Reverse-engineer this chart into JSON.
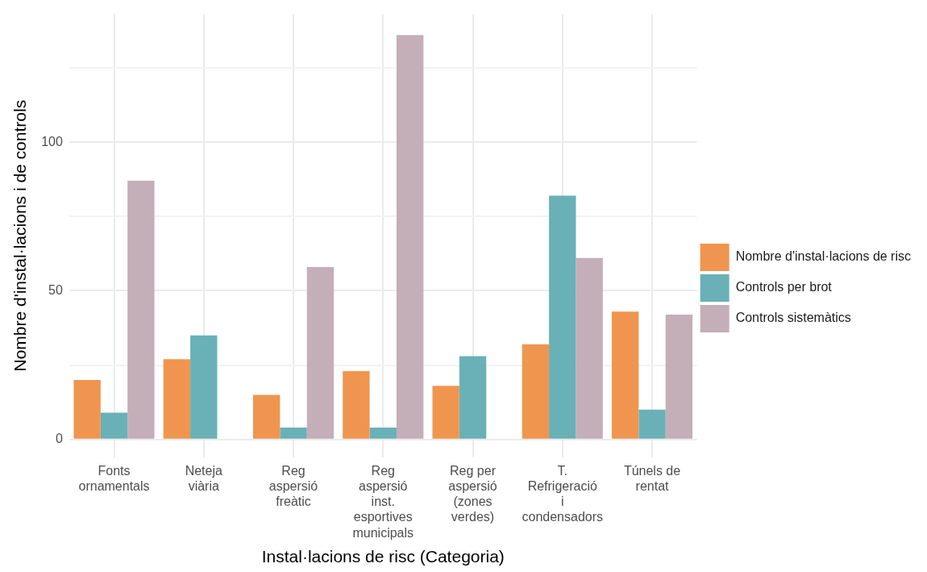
{
  "chart_data": {
    "type": "bar",
    "xlabel": "Instal·lacions de risc (Categoria)",
    "ylabel": "Nombre d'instal·lacions i de controls",
    "categories": [
      "Fonts ornamentals",
      "Neteja viària",
      "Reg aspersió freàtic",
      "Reg aspersió inst. esportives municipals",
      "Reg per aspersió (zones verdes)",
      "T. Refrigeració i condensadors",
      "Túnels de rentat"
    ],
    "series": [
      {
        "name": "Nombre d'instal·lacions de risc",
        "color": "#f0954f",
        "values": [
          20,
          27,
          15,
          23,
          18,
          32,
          43
        ]
      },
      {
        "name": "Controls per brot",
        "color": "#69b1b7",
        "values": [
          9,
          35,
          4,
          4,
          28,
          82,
          10
        ]
      },
      {
        "name": "Controls sistemàtics",
        "color": "#c4aeb7",
        "values": [
          87,
          null,
          58,
          136,
          null,
          61,
          42
        ]
      }
    ],
    "ylim": [
      -6,
      143
    ],
    "yticks": [
      0,
      {
        "value": 25,
        "label": null
      },
      50,
      {
        "value": 75,
        "label": null
      },
      100,
      {
        "value": 125,
        "label": null
      }
    ],
    "grid": true,
    "legend": "right"
  }
}
